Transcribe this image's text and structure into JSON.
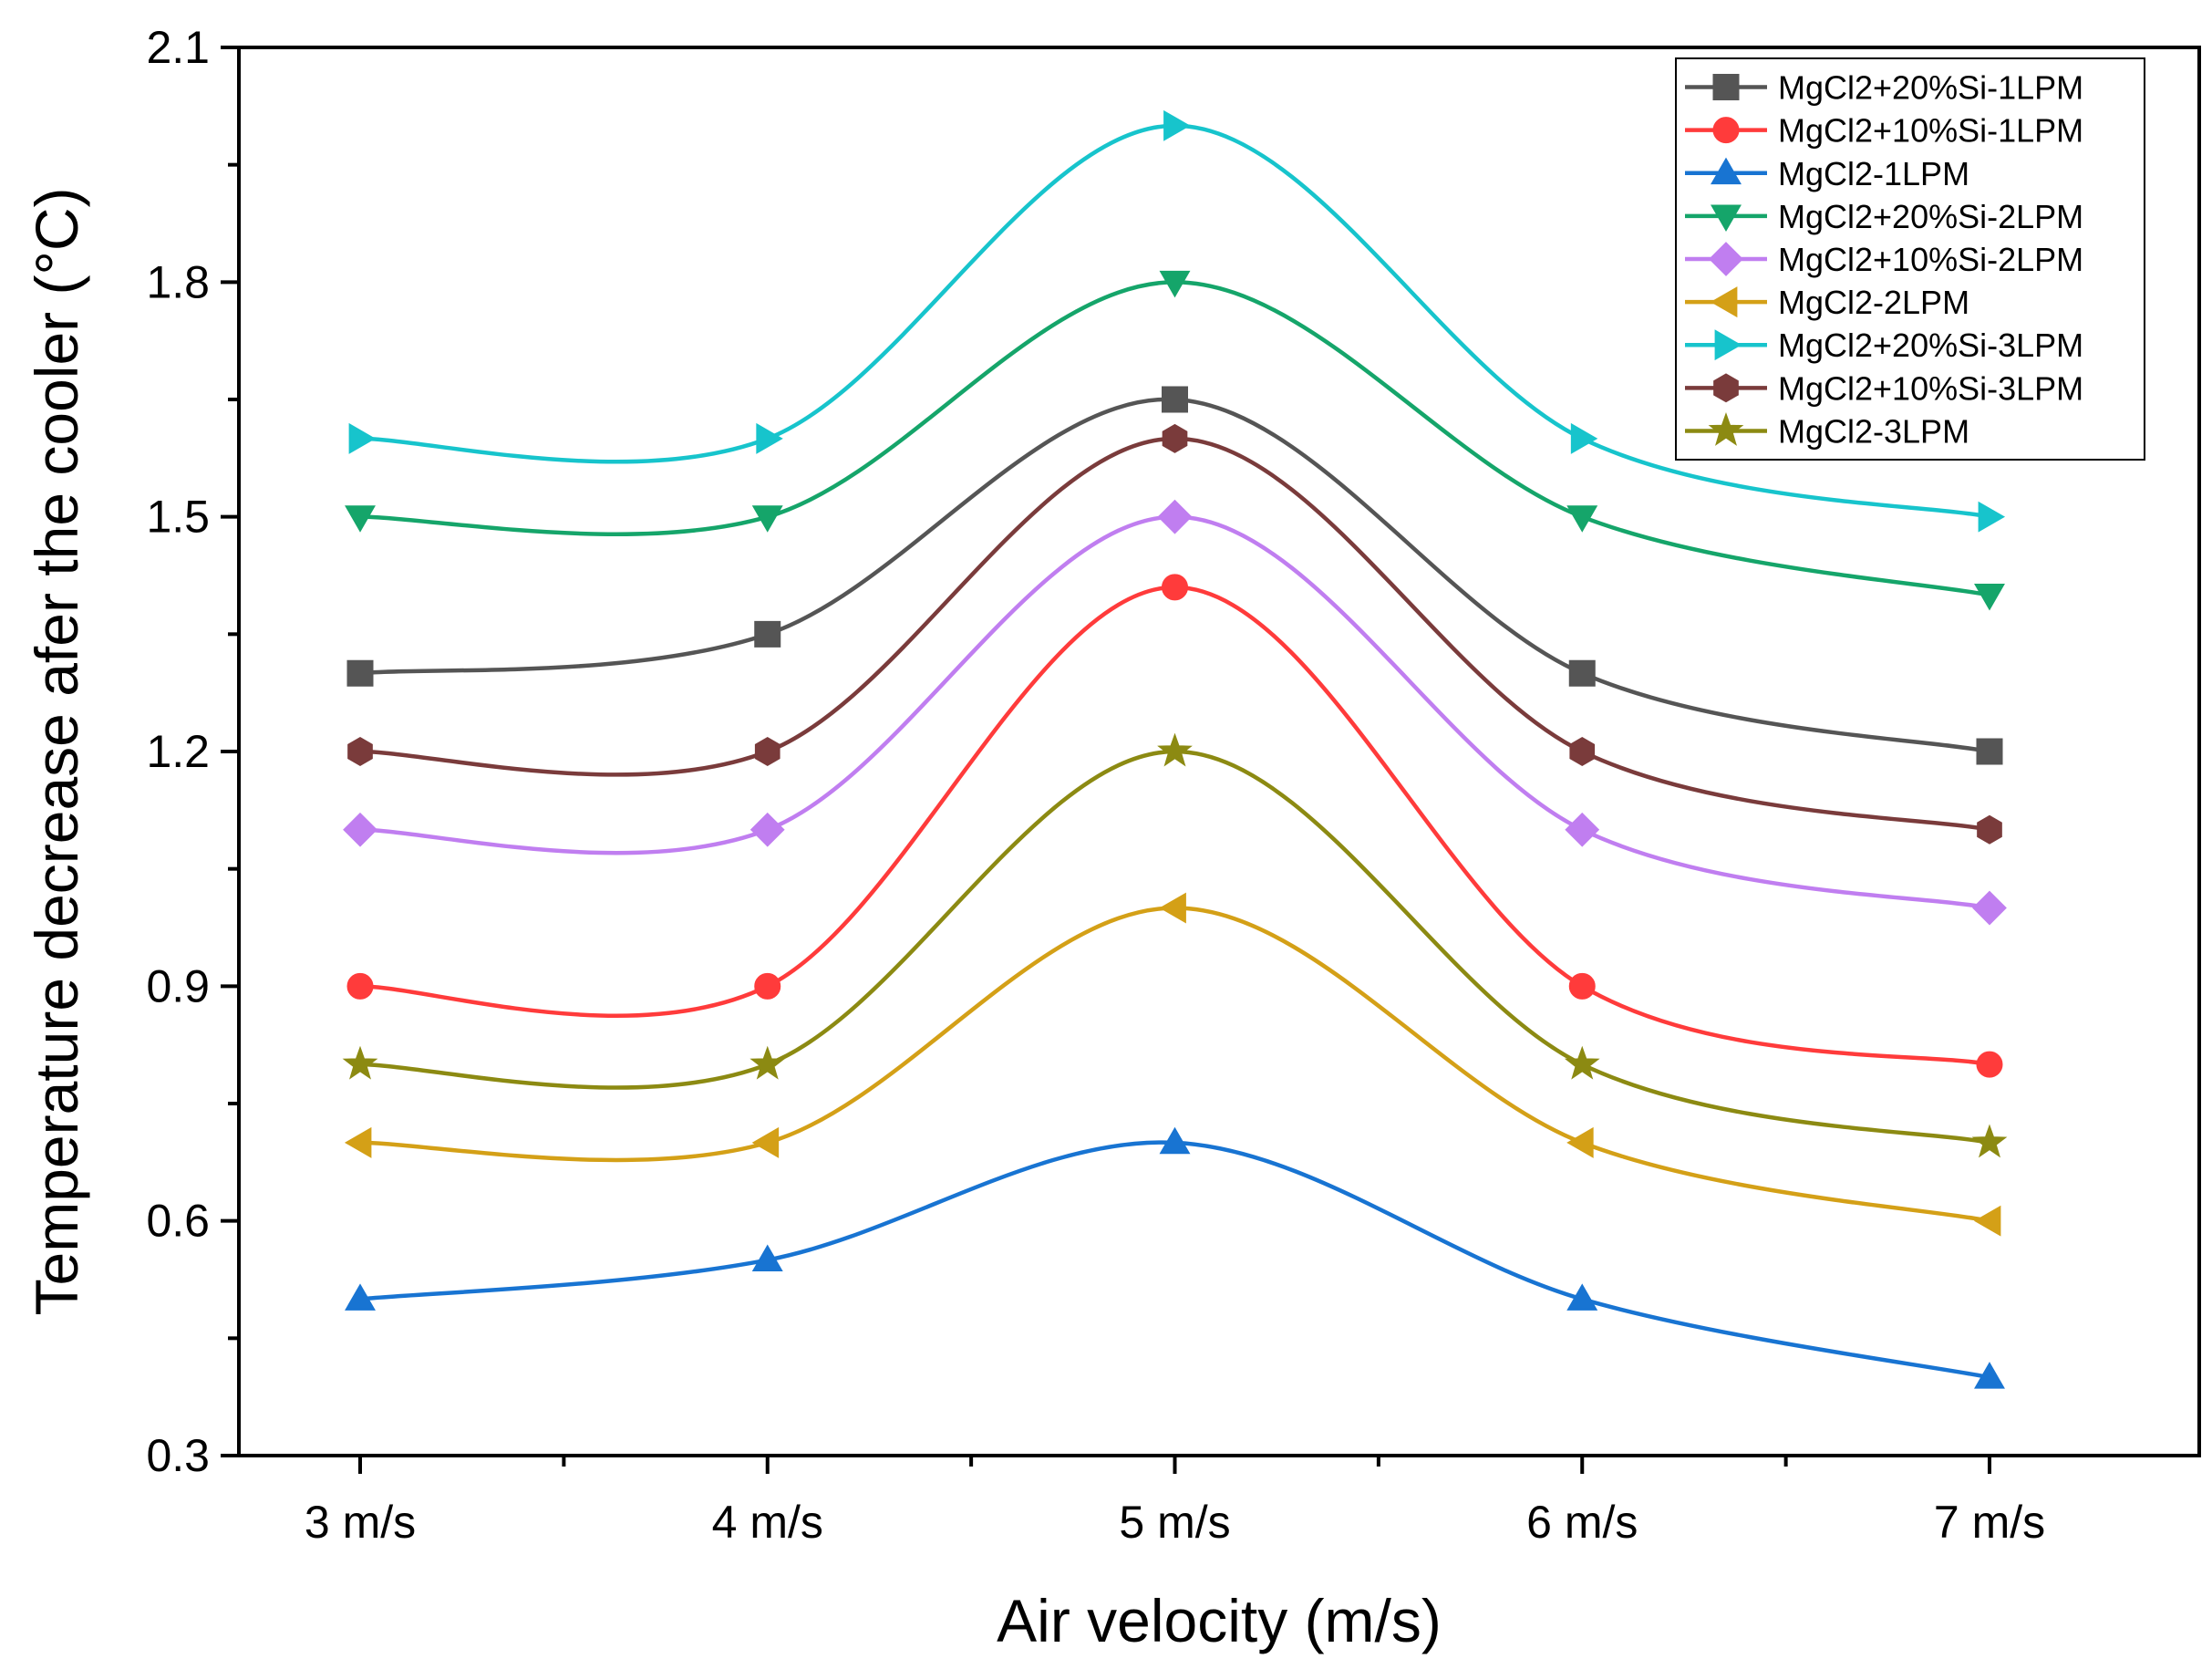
{
  "chart_data": {
    "type": "line",
    "xlabel": "Air velocity (m/s)",
    "ylabel": "Temperature decrease afer the cooler (°C)",
    "categories": [
      "3 m/s",
      "4 m/s",
      "5 m/s",
      "6 m/s",
      "7 m/s"
    ],
    "ylim": [
      0.3,
      2.1
    ],
    "yticks": [
      "0.3",
      "0.6",
      "0.9",
      "1.2",
      "1.5",
      "1.8",
      "2.1"
    ],
    "grid": false,
    "legend": "top-right",
    "series": [
      {
        "name": "MgCl2+20%Si-1LPM",
        "values": [
          1.3,
          1.35,
          1.65,
          1.3,
          1.2
        ],
        "marker": "square",
        "color": "#555555"
      },
      {
        "name": "MgCl2+10%Si-1LPM",
        "values": [
          0.9,
          0.9,
          1.41,
          0.9,
          0.8
        ],
        "marker": "circle",
        "color": "#ff3b3b"
      },
      {
        "name": "MgCl2-1LPM",
        "values": [
          0.5,
          0.55,
          0.7,
          0.5,
          0.4
        ],
        "marker": "triangle-up",
        "color": "#1874d2"
      },
      {
        "name": "MgCl2+20%Si-2LPM",
        "values": [
          1.5,
          1.5,
          1.8,
          1.5,
          1.4
        ],
        "marker": "triangle-down",
        "color": "#15a56a"
      },
      {
        "name": "MgCl2+10%Si-2LPM",
        "values": [
          1.1,
          1.1,
          1.5,
          1.1,
          1.0
        ],
        "marker": "diamond",
        "color": "#c07ef0"
      },
      {
        "name": "MgCl2-2LPM",
        "values": [
          0.7,
          0.7,
          1.0,
          0.7,
          0.6
        ],
        "marker": "triangle-left",
        "color": "#d4a017"
      },
      {
        "name": "MgCl2+20%Si-3LPM",
        "values": [
          1.6,
          1.6,
          2.0,
          1.6,
          1.5
        ],
        "marker": "triangle-right",
        "color": "#17c4cc"
      },
      {
        "name": "MgCl2+10%Si-3LPM",
        "values": [
          1.2,
          1.2,
          1.6,
          1.2,
          1.1
        ],
        "marker": "hexagon",
        "color": "#7a3b3b"
      },
      {
        "name": "MgCl2-3LPM",
        "values": [
          0.8,
          0.8,
          1.2,
          0.8,
          0.7
        ],
        "marker": "star",
        "color": "#8c8a12"
      }
    ]
  }
}
